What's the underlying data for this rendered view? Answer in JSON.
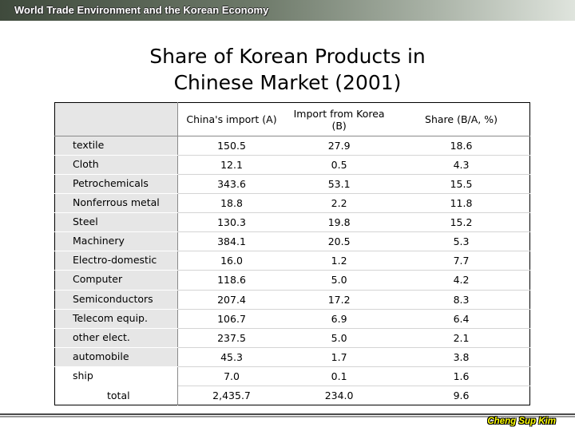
{
  "header": {
    "title": "World Trade Environment and the Korean Economy"
  },
  "slide": {
    "title_line1": "Share of Korean Products in",
    "title_line2": "Chinese Market (2001)"
  },
  "table": {
    "columns": [
      "China's import (A)",
      "Import from Korea (B)",
      "Share (B/A, %)"
    ],
    "column_b_lines": [
      "Import from Korea",
      "(B)"
    ],
    "rows": [
      {
        "label": "textile",
        "a": "150.5",
        "b": "27.9",
        "share": "18.6"
      },
      {
        "label": "Cloth",
        "a": "12.1",
        "b": "0.5",
        "share": "4.3"
      },
      {
        "label": "Petrochemicals",
        "a": "343.6",
        "b": "53.1",
        "share": "15.5"
      },
      {
        "label": "Nonferrous metal",
        "a": "18.8",
        "b": "2.2",
        "share": "11.8"
      },
      {
        "label": "Steel",
        "a": "130.3",
        "b": "19.8",
        "share": "15.2"
      },
      {
        "label": "Machinery",
        "a": "384.1",
        "b": "20.5",
        "share": "5.3"
      },
      {
        "label": "Electro-domestic",
        "a": "16.0",
        "b": "1.2",
        "share": "7.7"
      },
      {
        "label": "Computer",
        "a": "118.6",
        "b": "5.0",
        "share": "4.2"
      },
      {
        "label": "Semiconductors",
        "a": "207.4",
        "b": "17.2",
        "share": "8.3"
      },
      {
        "label": "Telecom equip.",
        "a": "106.7",
        "b": "6.9",
        "share": "6.4"
      },
      {
        "label": "other elect.",
        "a": "237.5",
        "b": "5.0",
        "share": "2.1"
      },
      {
        "label": "automobile",
        "a": "45.3",
        "b": "1.7",
        "share": "3.8"
      },
      {
        "label": "ship",
        "a": "7.0",
        "b": "0.1",
        "share": "1.6"
      }
    ],
    "total": {
      "label": "total",
      "a": "2,435.7",
      "b": "234.0",
      "share": "9.6"
    }
  },
  "footer": {
    "author": "Cheng Sup Kim"
  }
}
